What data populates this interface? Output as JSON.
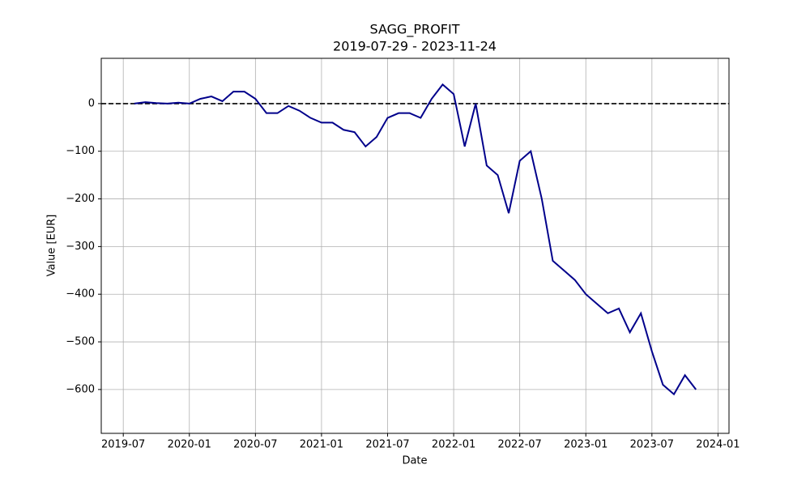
{
  "chart_data": {
    "type": "line",
    "title": "SAGG_PROFIT",
    "subtitle": "2019-07-29 - 2023-11-24",
    "x_label": "Date",
    "y_label": "Value [EUR]",
    "x": [
      "2019-08",
      "2019-09",
      "2019-10",
      "2019-11",
      "2019-12",
      "2020-01",
      "2020-02",
      "2020-03",
      "2020-04",
      "2020-05",
      "2020-06",
      "2020-07",
      "2020-08",
      "2020-09",
      "2020-10",
      "2020-11",
      "2020-12",
      "2021-01",
      "2021-02",
      "2021-03",
      "2021-04",
      "2021-05",
      "2021-06",
      "2021-07",
      "2021-08",
      "2021-09",
      "2021-10",
      "2021-11",
      "2021-12",
      "2022-01",
      "2022-02",
      "2022-03",
      "2022-04",
      "2022-05",
      "2022-06",
      "2022-07",
      "2022-08",
      "2022-09",
      "2022-10",
      "2022-11",
      "2022-12",
      "2023-01",
      "2023-02",
      "2023-03",
      "2023-04",
      "2023-05",
      "2023-06",
      "2023-07",
      "2023-08",
      "2023-09",
      "2023-10",
      "2023-11"
    ],
    "values": [
      0,
      3,
      1,
      0,
      2,
      0,
      10,
      15,
      5,
      25,
      25,
      10,
      -20,
      -20,
      -5,
      -15,
      -30,
      -40,
      -40,
      -55,
      -60,
      -90,
      -70,
      -30,
      -20,
      -20,
      -30,
      10,
      40,
      20,
      -90,
      0,
      -130,
      -150,
      -230,
      -120,
      -100,
      -200,
      -330,
      -350,
      -370,
      -400,
      -420,
      -440,
      -430,
      -480,
      -440,
      -520,
      -590,
      -610,
      -570,
      -600
    ],
    "color": "#00008b",
    "xlim": [
      "2019-05",
      "2024-02"
    ],
    "xticks": [
      "2019-07",
      "2020-01",
      "2020-07",
      "2021-01",
      "2021-07",
      "2022-01",
      "2022-07",
      "2023-01",
      "2023-07",
      "2024-01"
    ],
    "ylim": [
      -692,
      95
    ],
    "yticks": [
      {
        "value": -600,
        "label": "−600"
      },
      {
        "value": -500,
        "label": "−500"
      },
      {
        "value": -400,
        "label": "−400"
      },
      {
        "value": -300,
        "label": "−300"
      },
      {
        "value": -200,
        "label": "−200"
      },
      {
        "value": -100,
        "label": "−100"
      },
      0
    ],
    "reference_line": 0,
    "grid": true
  }
}
